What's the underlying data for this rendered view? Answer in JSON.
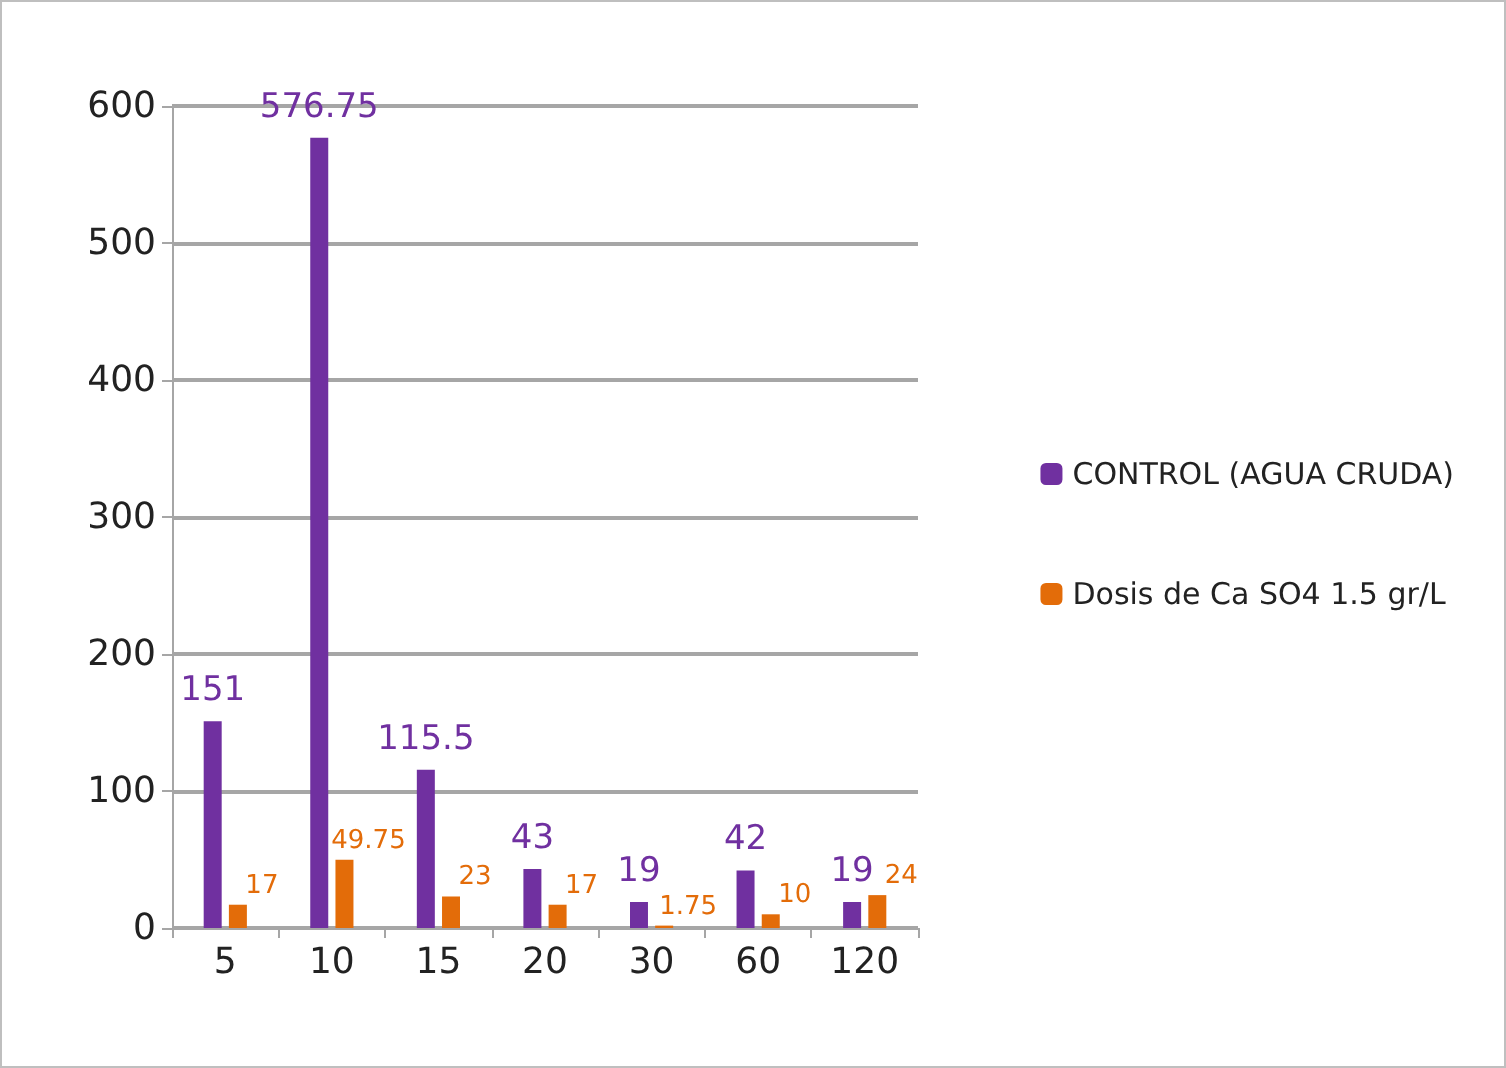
{
  "chart_data": {
    "type": "bar",
    "categories": [
      "5",
      "10",
      "15",
      "20",
      "30",
      "60",
      "120"
    ],
    "series": [
      {
        "name": "CONTROL (AGUA CRUDA)",
        "color": "#7030a0",
        "values": [
          151,
          576.75,
          115.5,
          43,
          19,
          42,
          19
        ]
      },
      {
        "name": "Dosis de Ca SO4 1.5 gr/L",
        "color": "#e36c09",
        "values": [
          17,
          49.75,
          23,
          17,
          1.75,
          10,
          24
        ]
      }
    ],
    "ylim": [
      0,
      600
    ],
    "yticks": [
      0,
      100,
      200,
      300,
      400,
      500,
      600
    ],
    "grid": "y",
    "legend": "right",
    "data_labels": true
  }
}
